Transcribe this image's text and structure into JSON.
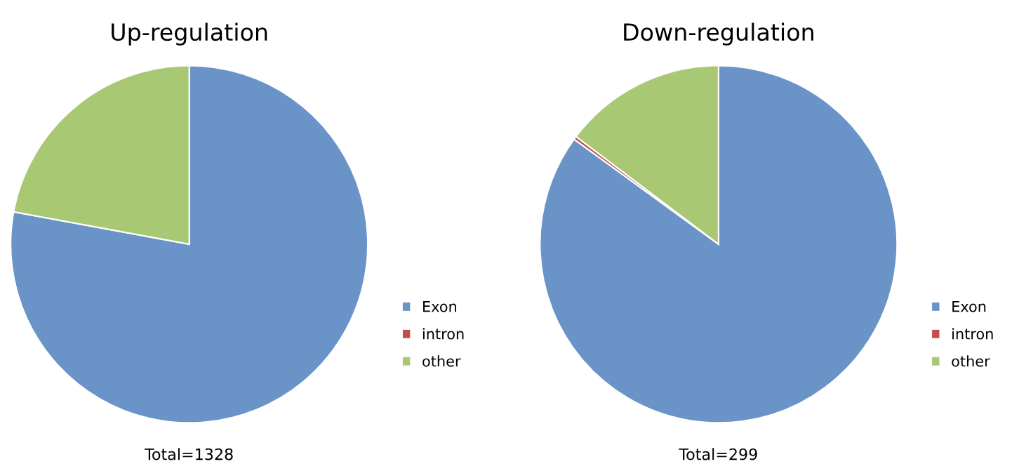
{
  "chart_data": [
    {
      "type": "pie",
      "title": "Up-regulation",
      "categories": [
        "Exon",
        "intron",
        "other"
      ],
      "values": [
        77.9,
        0,
        22.1
      ],
      "colors": [
        "#6a94c8",
        "#c0504d",
        "#a9c873"
      ],
      "legend": "bottom right",
      "annotations": [
        "Total=1328"
      ]
    },
    {
      "type": "pie",
      "title": "Down-regulation",
      "categories": [
        "Exon",
        "intron",
        "other"
      ],
      "values": [
        85.0,
        0.3,
        14.7
      ],
      "colors": [
        "#6a94c8",
        "#c0504d",
        "#a9c873"
      ],
      "legend": "bottom right",
      "annotations": [
        "Total=299"
      ]
    }
  ]
}
